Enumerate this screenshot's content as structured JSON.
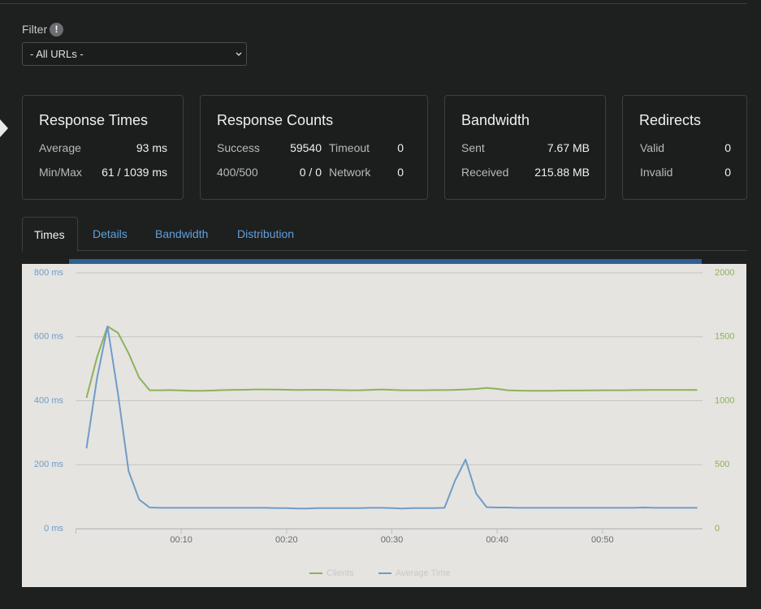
{
  "filter": {
    "label": "Filter",
    "icon": "!",
    "select": "- All URLs -"
  },
  "cards": [
    {
      "title": "Response Times",
      "rows": [
        [
          "Average",
          "93 ms"
        ],
        [
          "Min/Max",
          "61 / 1039 ms"
        ]
      ]
    },
    {
      "title": "Response Counts",
      "rows": [
        [
          "Success",
          "59540",
          "Timeout",
          "0"
        ],
        [
          "400/500",
          "0 / 0",
          "Network",
          "0"
        ]
      ]
    },
    {
      "title": "Bandwidth",
      "rows": [
        [
          "Sent",
          "7.67 MB"
        ],
        [
          "Received",
          "215.88 MB"
        ]
      ]
    },
    {
      "title": "Redirects",
      "rows": [
        [
          "Valid",
          "0"
        ],
        [
          "Invalid",
          "0"
        ]
      ]
    }
  ],
  "tabs": [
    "Times",
    "Details",
    "Bandwidth",
    "Distribution"
  ],
  "chart_data": {
    "type": "line",
    "x": [
      1,
      2,
      3,
      4,
      5,
      6,
      7,
      8,
      9,
      10,
      11,
      12,
      13,
      14,
      15,
      16,
      17,
      18,
      19,
      20,
      21,
      22,
      23,
      24,
      25,
      26,
      27,
      28,
      29,
      30,
      31,
      32,
      33,
      34,
      35,
      36,
      37,
      38,
      39,
      40,
      41,
      42,
      43,
      44,
      45,
      46,
      47,
      48,
      49,
      50,
      51,
      52,
      53,
      54,
      55,
      56,
      57,
      58,
      59
    ],
    "xlim": [
      0,
      59.5
    ],
    "xticks": [
      {
        "value": 10,
        "label": "00:10"
      },
      {
        "value": 20,
        "label": "00:20"
      },
      {
        "value": 30,
        "label": "00:30"
      },
      {
        "value": 40,
        "label": "00:40"
      },
      {
        "value": 50,
        "label": "00:50"
      }
    ],
    "ylim": [
      0,
      800
    ],
    "yticks": [
      {
        "value": 0,
        "label": "0 ms"
      },
      {
        "value": 200,
        "label": "200 ms"
      },
      {
        "value": 400,
        "label": "400 ms"
      },
      {
        "value": 600,
        "label": "600 ms"
      },
      {
        "value": 800,
        "label": "800 ms"
      }
    ],
    "y2lim": [
      0,
      2000
    ],
    "y2ticks": [
      0,
      500,
      1000,
      1500,
      2000
    ],
    "grid": true,
    "legend": "bottom",
    "series": [
      {
        "name": "Clients",
        "color": "#8db25a",
        "axis": "y2",
        "values": [
          1022,
          1340,
          1581,
          1530,
          1371,
          1181,
          1082,
          1082,
          1083,
          1080,
          1078,
          1078,
          1080,
          1083,
          1085,
          1086,
          1088,
          1088,
          1087,
          1086,
          1084,
          1085,
          1086,
          1085,
          1083,
          1082,
          1082,
          1085,
          1088,
          1085,
          1082,
          1082,
          1082,
          1083,
          1083,
          1085,
          1088,
          1092,
          1100,
          1093,
          1082,
          1079,
          1078,
          1078,
          1078,
          1079,
          1080,
          1080,
          1081,
          1082,
          1082,
          1082,
          1083,
          1084,
          1084,
          1084,
          1084,
          1084,
          1084
        ]
      },
      {
        "name": "Average Time",
        "color": "#6f9cc6",
        "values": [
          251,
          470,
          632,
          420,
          180,
          91,
          66,
          65,
          65,
          65,
          65,
          65,
          65,
          65,
          65,
          65,
          65,
          65,
          64,
          64,
          63,
          63,
          64,
          64,
          64,
          64,
          64,
          65,
          65,
          64,
          63,
          64,
          64,
          64,
          65,
          150,
          216,
          110,
          67,
          66,
          66,
          65,
          65,
          65,
          65,
          65,
          65,
          65,
          65,
          65,
          65,
          65,
          65,
          66,
          65,
          65,
          65,
          65,
          65
        ]
      }
    ]
  }
}
